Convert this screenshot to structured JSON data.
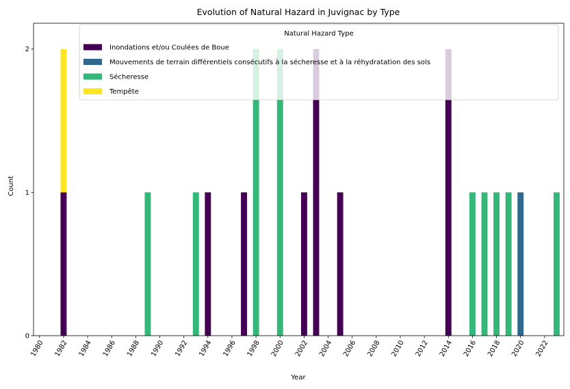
{
  "chart_data": {
    "type": "bar",
    "stacked": true,
    "title": "Evolution of Natural Hazard in Juvignac by Type",
    "xlabel": "Year",
    "ylabel": "Count",
    "ylim": [
      0,
      2.18
    ],
    "yticks": [
      0,
      1,
      2
    ],
    "xtick_labels": [
      "1980",
      "1982",
      "1984",
      "1986",
      "1988",
      "1990",
      "1992",
      "1994",
      "1996",
      "1998",
      "2000",
      "2002",
      "2004",
      "2006",
      "2008",
      "2010",
      "2012",
      "2014",
      "2016",
      "2018",
      "2020",
      "2022"
    ],
    "grid": false,
    "legend": {
      "title": "Natural Hazard Type",
      "placement": "top-right"
    },
    "series": [
      {
        "name": "Inondations et/ou Coulées de Boue",
        "color": "#440154",
        "points": [
          [
            1982,
            1
          ],
          [
            1994,
            1
          ],
          [
            1997,
            1
          ],
          [
            2002,
            1
          ],
          [
            2003,
            2
          ],
          [
            2005,
            1
          ],
          [
            2014,
            2
          ]
        ]
      },
      {
        "name": "Mouvements de terrain différentiels consécutifs à la sécheresse et à la réhydratation des sols",
        "color": "#31688e",
        "points": [
          [
            2020,
            1
          ]
        ]
      },
      {
        "name": "Sécheresse",
        "color": "#35b779",
        "points": [
          [
            1989,
            1
          ],
          [
            1993,
            1
          ],
          [
            1998,
            2
          ],
          [
            2000,
            2
          ],
          [
            2016,
            1
          ],
          [
            2017,
            1
          ],
          [
            2018,
            1
          ],
          [
            2019,
            1
          ],
          [
            2023,
            1
          ]
        ]
      },
      {
        "name": "Tempête",
        "color": "#fde725",
        "points": [
          [
            1982,
            1
          ]
        ]
      }
    ]
  }
}
